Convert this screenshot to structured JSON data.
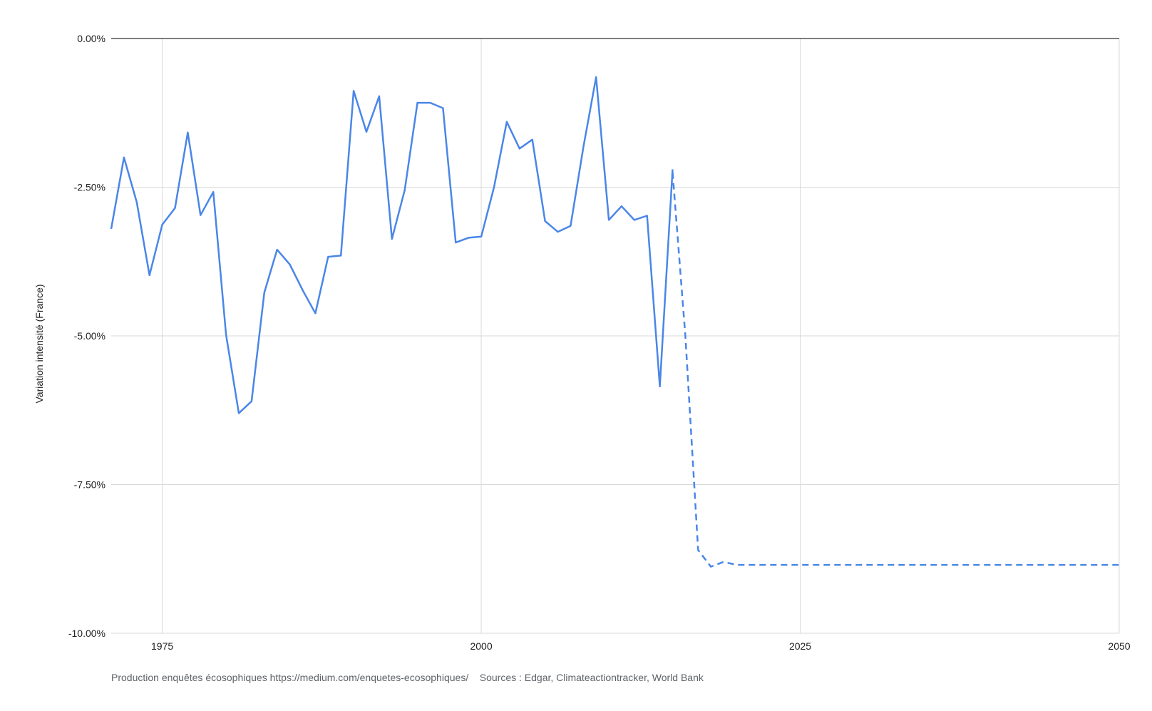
{
  "chart_data": {
    "type": "line",
    "xlabel": "",
    "ylabel": "Variation intensité (France)",
    "xlim": [
      1971,
      2050
    ],
    "ylim": [
      -10,
      0
    ],
    "x_ticks": [
      "1975",
      "2000",
      "2025",
      "2050"
    ],
    "y_ticks": [
      "0.00%",
      "-2.50%",
      "-5.00%",
      "-7.50%",
      "-10.00%"
    ],
    "grid": true,
    "footer": "Production enquêtes écosophiques https://medium.com/enquetes-ecosophiques/    Sources : Edgar, Climateactiontracker, World Bank",
    "series": [
      {
        "style": "solid",
        "color": "#4a86e8",
        "points": [
          [
            1971,
            -3.2
          ],
          [
            1972,
            -2.0
          ],
          [
            1973,
            -2.75
          ],
          [
            1974,
            -3.98
          ],
          [
            1975,
            -3.13
          ],
          [
            1976,
            -2.85
          ],
          [
            1977,
            -1.58
          ],
          [
            1978,
            -2.97
          ],
          [
            1979,
            -2.58
          ],
          [
            1980,
            -4.98
          ],
          [
            1981,
            -6.3
          ],
          [
            1982,
            -6.1
          ],
          [
            1983,
            -4.27
          ],
          [
            1984,
            -3.55
          ],
          [
            1985,
            -3.8
          ],
          [
            1986,
            -4.23
          ],
          [
            1987,
            -4.62
          ],
          [
            1988,
            -3.67
          ],
          [
            1989,
            -3.65
          ],
          [
            1990,
            -0.88
          ],
          [
            1991,
            -1.57
          ],
          [
            1992,
            -0.97
          ],
          [
            1993,
            -3.37
          ],
          [
            1994,
            -2.55
          ],
          [
            1995,
            -1.08
          ],
          [
            1996,
            -1.08
          ],
          [
            1997,
            -1.17
          ],
          [
            1998,
            -3.43
          ],
          [
            1999,
            -3.35
          ],
          [
            2000,
            -3.33
          ],
          [
            2001,
            -2.5
          ],
          [
            2002,
            -1.4
          ],
          [
            2003,
            -1.85
          ],
          [
            2004,
            -1.7
          ],
          [
            2005,
            -3.07
          ],
          [
            2006,
            -3.25
          ],
          [
            2007,
            -3.15
          ],
          [
            2008,
            -1.83
          ],
          [
            2009,
            -0.65
          ],
          [
            2010,
            -3.05
          ],
          [
            2011,
            -2.82
          ],
          [
            2012,
            -3.05
          ],
          [
            2013,
            -2.98
          ],
          [
            2014,
            -5.85
          ],
          [
            2015,
            -2.2
          ]
        ]
      },
      {
        "style": "dashed",
        "color": "#4a86e8",
        "points": [
          [
            2015,
            -2.25
          ],
          [
            2016,
            -5.0
          ],
          [
            2017,
            -8.6
          ],
          [
            2018,
            -8.88
          ],
          [
            2019,
            -8.8
          ],
          [
            2020,
            -8.85
          ],
          [
            2025,
            -8.85
          ],
          [
            2030,
            -8.85
          ],
          [
            2035,
            -8.85
          ],
          [
            2040,
            -8.85
          ],
          [
            2045,
            -8.85
          ],
          [
            2050,
            -8.85
          ]
        ]
      }
    ]
  }
}
